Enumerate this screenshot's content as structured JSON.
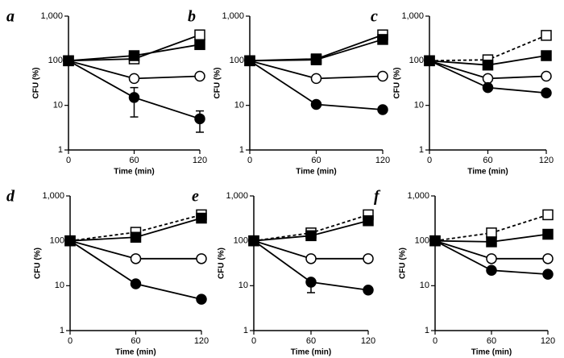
{
  "chart_data": [
    {
      "type": "line",
      "title": "a",
      "ylabel": "CFU (%)",
      "xlabel": "Time (min)",
      "log_y": true,
      "x": [
        0,
        60,
        120
      ],
      "xlim": [
        0,
        120
      ],
      "xticks": [
        0,
        60,
        120
      ],
      "ylim": [
        1,
        1000
      ],
      "yticks": [
        1,
        10,
        100,
        {
          "value": 1000,
          "label": "1,000"
        }
      ],
      "series": [
        {
          "color": "#000",
          "marker": "square",
          "filled": false,
          "dashed": false,
          "values": [
            100,
            110,
            380
          ]
        },
        {
          "color": "#000",
          "marker": "square",
          "filled": true,
          "dashed": false,
          "values": [
            100,
            130,
            230
          ]
        },
        {
          "color": "#000",
          "marker": "circle",
          "filled": false,
          "dashed": false,
          "values": [
            100,
            40,
            45
          ]
        },
        {
          "color": "#000",
          "marker": "circle",
          "filled": true,
          "dashed": false,
          "values": [
            100,
            15,
            5
          ],
          "err_low": [
            null,
            5.5,
            2.5
          ],
          "err_high": [
            null,
            25,
            7.5
          ]
        }
      ]
    },
    {
      "type": "line",
      "title": "b",
      "ylabel": "CFU (%)",
      "xlabel": "Time (min)",
      "log_y": true,
      "x": [
        0,
        60,
        120
      ],
      "xlim": [
        0,
        120
      ],
      "xticks": [
        0,
        60,
        120
      ],
      "ylim": [
        1,
        1000
      ],
      "yticks": [
        1,
        10,
        100,
        {
          "value": 1000,
          "label": "1,000"
        }
      ],
      "series": [
        {
          "color": "#000",
          "marker": "square",
          "filled": false,
          "dashed": false,
          "values": [
            100,
            110,
            380
          ]
        },
        {
          "color": "#000",
          "marker": "square",
          "filled": true,
          "dashed": false,
          "values": [
            100,
            105,
            300
          ]
        },
        {
          "color": "#000",
          "marker": "circle",
          "filled": false,
          "dashed": false,
          "values": [
            100,
            40,
            45
          ]
        },
        {
          "color": "#000",
          "marker": "circle",
          "filled": true,
          "dashed": false,
          "values": [
            100,
            10.5,
            8
          ]
        }
      ]
    },
    {
      "type": "line",
      "title": "c",
      "ylabel": "CFU (%)",
      "xlabel": "Time (min)",
      "log_y": true,
      "x": [
        0,
        60,
        120
      ],
      "xlim": [
        0,
        120
      ],
      "xticks": [
        0,
        60,
        120
      ],
      "ylim": [
        1,
        1000
      ],
      "yticks": [
        1,
        10,
        100,
        {
          "value": 1000,
          "label": "1,000"
        }
      ],
      "series": [
        {
          "color": "#000",
          "marker": "square",
          "filled": false,
          "dashed": true,
          "values": [
            100,
            105,
            370
          ]
        },
        {
          "color": "#000",
          "marker": "square",
          "filled": true,
          "dashed": false,
          "values": [
            100,
            80,
            130
          ]
        },
        {
          "color": "#000",
          "marker": "circle",
          "filled": false,
          "dashed": false,
          "values": [
            100,
            40,
            45
          ]
        },
        {
          "color": "#000",
          "marker": "circle",
          "filled": true,
          "dashed": false,
          "values": [
            100,
            25,
            19
          ]
        }
      ]
    },
    {
      "type": "line",
      "title": "d",
      "ylabel": "CFU (%)",
      "xlabel": "Time (min)",
      "log_y": true,
      "x": [
        0,
        60,
        120
      ],
      "xlim": [
        0,
        120
      ],
      "xticks": [
        0,
        60,
        120
      ],
      "ylim": [
        1,
        1000
      ],
      "yticks": [
        1,
        10,
        100,
        {
          "value": 1000,
          "label": "1,000"
        }
      ],
      "series": [
        {
          "color": "#000",
          "marker": "square",
          "filled": false,
          "dashed": true,
          "values": [
            100,
            155,
            380
          ]
        },
        {
          "color": "#000",
          "marker": "square",
          "filled": true,
          "dashed": false,
          "values": [
            100,
            120,
            320
          ]
        },
        {
          "color": "#000",
          "marker": "circle",
          "filled": false,
          "dashed": false,
          "values": [
            100,
            40,
            40
          ]
        },
        {
          "color": "#000",
          "marker": "circle",
          "filled": true,
          "dashed": false,
          "values": [
            100,
            11,
            5
          ]
        }
      ]
    },
    {
      "type": "line",
      "title": "e",
      "ylabel": "CFU (%)",
      "xlabel": "Time (min)",
      "log_y": true,
      "x": [
        0,
        60,
        120
      ],
      "xlim": [
        0,
        120
      ],
      "xticks": [
        0,
        60,
        120
      ],
      "ylim": [
        1,
        1000
      ],
      "yticks": [
        1,
        10,
        100,
        {
          "value": 1000,
          "label": "1,000"
        }
      ],
      "series": [
        {
          "color": "#000",
          "marker": "square",
          "filled": false,
          "dashed": true,
          "values": [
            100,
            150,
            380
          ]
        },
        {
          "color": "#000",
          "marker": "square",
          "filled": true,
          "dashed": false,
          "values": [
            100,
            130,
            280
          ]
        },
        {
          "color": "#000",
          "marker": "circle",
          "filled": false,
          "dashed": false,
          "values": [
            100,
            40,
            40
          ]
        },
        {
          "color": "#000",
          "marker": "circle",
          "filled": true,
          "dashed": false,
          "values": [
            100,
            12,
            8
          ],
          "err_low": [
            null,
            7,
            null
          ]
        }
      ]
    },
    {
      "type": "line",
      "title": "f",
      "ylabel": "CFU (%)",
      "xlabel": "Time (min)",
      "log_y": true,
      "x": [
        0,
        60,
        120
      ],
      "xlim": [
        0,
        120
      ],
      "xticks": [
        0,
        60,
        120
      ],
      "ylim": [
        1,
        1000
      ],
      "yticks": [
        1,
        10,
        100,
        {
          "value": 1000,
          "label": "1,000"
        }
      ],
      "series": [
        {
          "color": "#000",
          "marker": "square",
          "filled": false,
          "dashed": true,
          "values": [
            100,
            150,
            380
          ]
        },
        {
          "color": "#000",
          "marker": "square",
          "filled": true,
          "dashed": false,
          "values": [
            100,
            95,
            140
          ]
        },
        {
          "color": "#000",
          "marker": "circle",
          "filled": false,
          "dashed": false,
          "values": [
            100,
            40,
            40
          ]
        },
        {
          "color": "#000",
          "marker": "circle",
          "filled": true,
          "dashed": false,
          "values": [
            100,
            22,
            18
          ]
        }
      ]
    }
  ]
}
